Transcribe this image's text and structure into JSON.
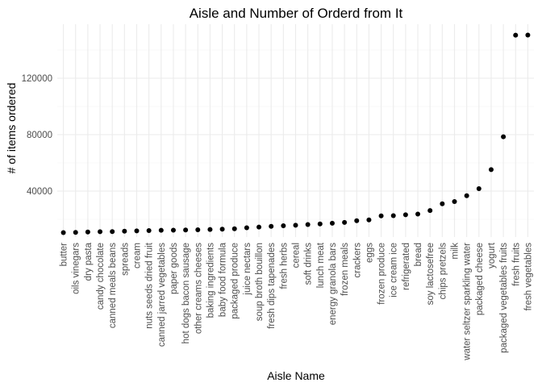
{
  "chart_data": {
    "type": "scatter",
    "title": "Aisle and Number of Orderd from It",
    "xlabel": "Aisle Name",
    "ylabel": "# of items ordered",
    "y_ticks": [
      40000,
      80000,
      120000
    ],
    "y_tick_labels": [
      "40000",
      "80000",
      "120000"
    ],
    "ylim": [
      8000,
      152000
    ],
    "grid": true,
    "point_color": "#000000",
    "categories": [
      "butter",
      "oils vinegars",
      "dry pasta",
      "candy chocolate",
      "canned meals beans",
      "spreads",
      "cream",
      "nuts seeds dried fruit",
      "canned jarred vegetables",
      "paper goods",
      "hot dogs bacon sausage",
      "other creams cheeses",
      "baking ingredients",
      "baby food formula",
      "packaged produce",
      "juice nectars",
      "soup broth bouillon",
      "fresh dips tapenades",
      "fresh herbs",
      "cereal",
      "soft drinks",
      "lunch meat",
      "energy granola bars",
      "frozen meals",
      "crackers",
      "eggs",
      "frozen produce",
      "ice cream ice",
      "refrigerated",
      "bread",
      "soy lactosefree",
      "chips pretzels",
      "milk",
      "water seltzer sparkling water",
      "packaged cheese",
      "yogurt",
      "packaged vegetables fruits",
      "fresh fruits",
      "fresh vegetables"
    ],
    "values": [
      10575,
      10700,
      11000,
      11200,
      11300,
      11600,
      11800,
      12000,
      12200,
      12300,
      12400,
      12600,
      12800,
      13000,
      13300,
      14000,
      14500,
      15000,
      15400,
      15800,
      16300,
      16700,
      17200,
      17800,
      19000,
      19600,
      22400,
      22600,
      23200,
      23700,
      26200,
      31000,
      32600,
      36700,
      41700,
      55200,
      78500,
      150500,
      150600
    ]
  }
}
